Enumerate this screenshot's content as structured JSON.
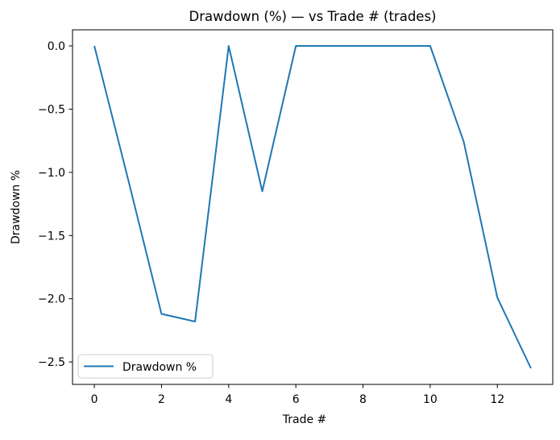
{
  "window": {
    "background_color": "#ffffff"
  },
  "chart_data": {
    "type": "line",
    "title": "Drawdown (%) — vs Trade # (trades)",
    "xlabel": "Trade #",
    "ylabel": "Drawdown %",
    "legend": [
      "Drawdown %"
    ],
    "legend_position": "lower left",
    "grid": false,
    "line_color": "#1f77b4",
    "line_width": 2,
    "spine_color": "#000000",
    "x": [
      0,
      1,
      2,
      3,
      4,
      5,
      6,
      7,
      8,
      9,
      10,
      11,
      12,
      13
    ],
    "values": [
      0.0,
      -1.05,
      -2.12,
      -2.18,
      0.0,
      -1.15,
      0.0,
      0.0,
      0.0,
      0.0,
      0.0,
      -0.76,
      -1.99,
      -2.55
    ],
    "xlim": [
      -0.65,
      13.65
    ],
    "ylim": [
      -2.6775,
      0.1275
    ],
    "xticks": [
      0,
      2,
      4,
      6,
      8,
      10,
      12
    ],
    "xtick_labels": [
      "0",
      "2",
      "4",
      "6",
      "8",
      "10",
      "12"
    ],
    "yticks": [
      0,
      -0.5,
      -1,
      -1.5,
      -2,
      -2.5
    ],
    "ytick_labels": [
      "0.0",
      "−0.5",
      "−1.0",
      "−1.5",
      "−2.0",
      "−2.5"
    ]
  }
}
